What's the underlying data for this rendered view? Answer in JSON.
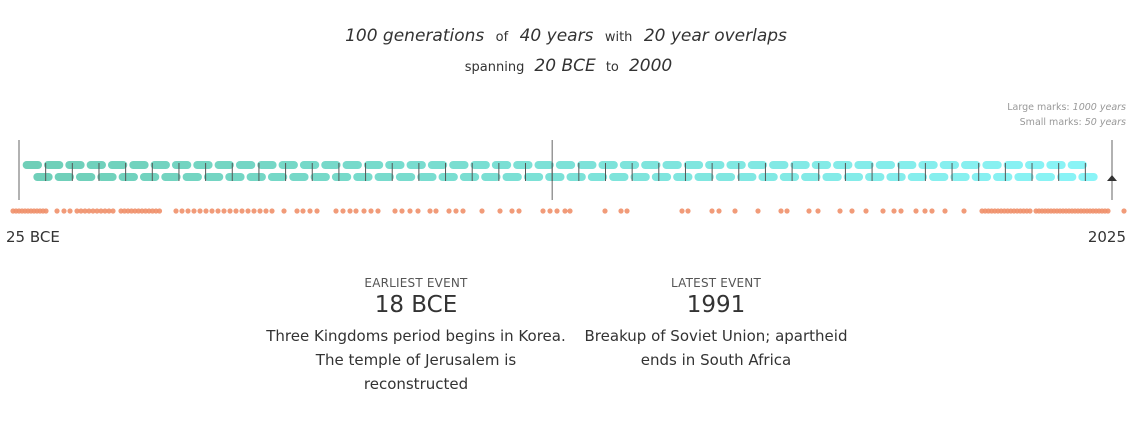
{
  "header": {
    "generations": "100 generations",
    "of": "of",
    "years": "40 years",
    "with": "with",
    "overlap": "20 year overlaps",
    "spanning": "spanning",
    "start": "20 BCE",
    "to": "to",
    "end": "2000"
  },
  "legend": {
    "large_label": "Large marks:",
    "large_value": "1000 years",
    "small_label": "Small marks:",
    "small_value": "50 years"
  },
  "axis": {
    "start_label": "25 BCE",
    "end_label": "2025"
  },
  "earliest": {
    "caption": "EARLIEST EVENT",
    "year": "18 BCE",
    "description": "Three Kingdoms period begins in Korea. The temple of Jerusalem is reconstructed"
  },
  "latest": {
    "caption": "LATEST EVENT",
    "year": "1991",
    "description": "Breakup of Soviet Union; apartheid ends in South Africa"
  },
  "colors": {
    "generation_start": "#6fcfb8",
    "generation_end": "#8af4f7",
    "event_dot": "#f0906a",
    "tick": "#555555"
  }
}
